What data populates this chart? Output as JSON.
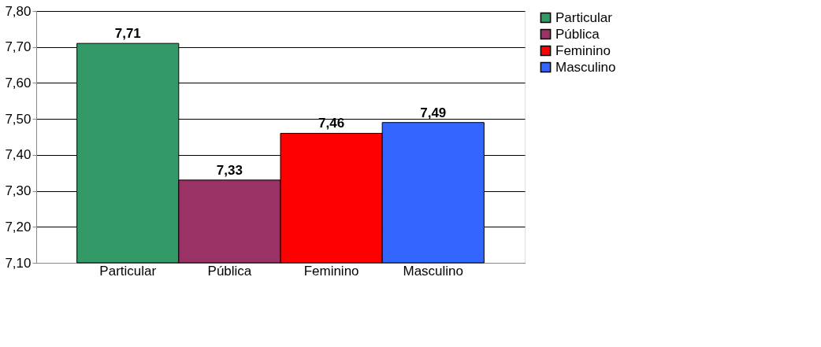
{
  "chart_data": {
    "type": "bar",
    "categories": [
      "Particular",
      "Pública",
      "Feminino",
      "Masculino"
    ],
    "series": [
      {
        "name": "Particular",
        "color": "#339966",
        "values": [
          7.71,
          null,
          null,
          null
        ],
        "value_labels": [
          "7,71",
          null,
          null,
          null
        ]
      },
      {
        "name": "Pública",
        "color": "#993366",
        "values": [
          null,
          7.33,
          null,
          null
        ],
        "value_labels": [
          null,
          "7,33",
          null,
          null
        ]
      },
      {
        "name": "Feminino",
        "color": "#ff0000",
        "values": [
          null,
          null,
          7.46,
          null
        ],
        "value_labels": [
          null,
          null,
          "7,46",
          null
        ]
      },
      {
        "name": "Masculino",
        "color": "#3366ff",
        "values": [
          null,
          null,
          null,
          7.49
        ],
        "value_labels": [
          null,
          null,
          null,
          "7,49"
        ]
      }
    ],
    "ylim": [
      7.1,
      7.8
    ],
    "yticks": [
      {
        "value": 7.1,
        "label": "7,10"
      },
      {
        "value": 7.2,
        "label": "7,20"
      },
      {
        "value": 7.3,
        "label": "7,30"
      },
      {
        "value": 7.4,
        "label": "7,40"
      },
      {
        "value": 7.5,
        "label": "7,50"
      },
      {
        "value": 7.6,
        "label": "7,60"
      },
      {
        "value": 7.7,
        "label": "7,70"
      },
      {
        "value": 7.8,
        "label": "7,80"
      }
    ],
    "grid": "y",
    "legend": "right"
  }
}
